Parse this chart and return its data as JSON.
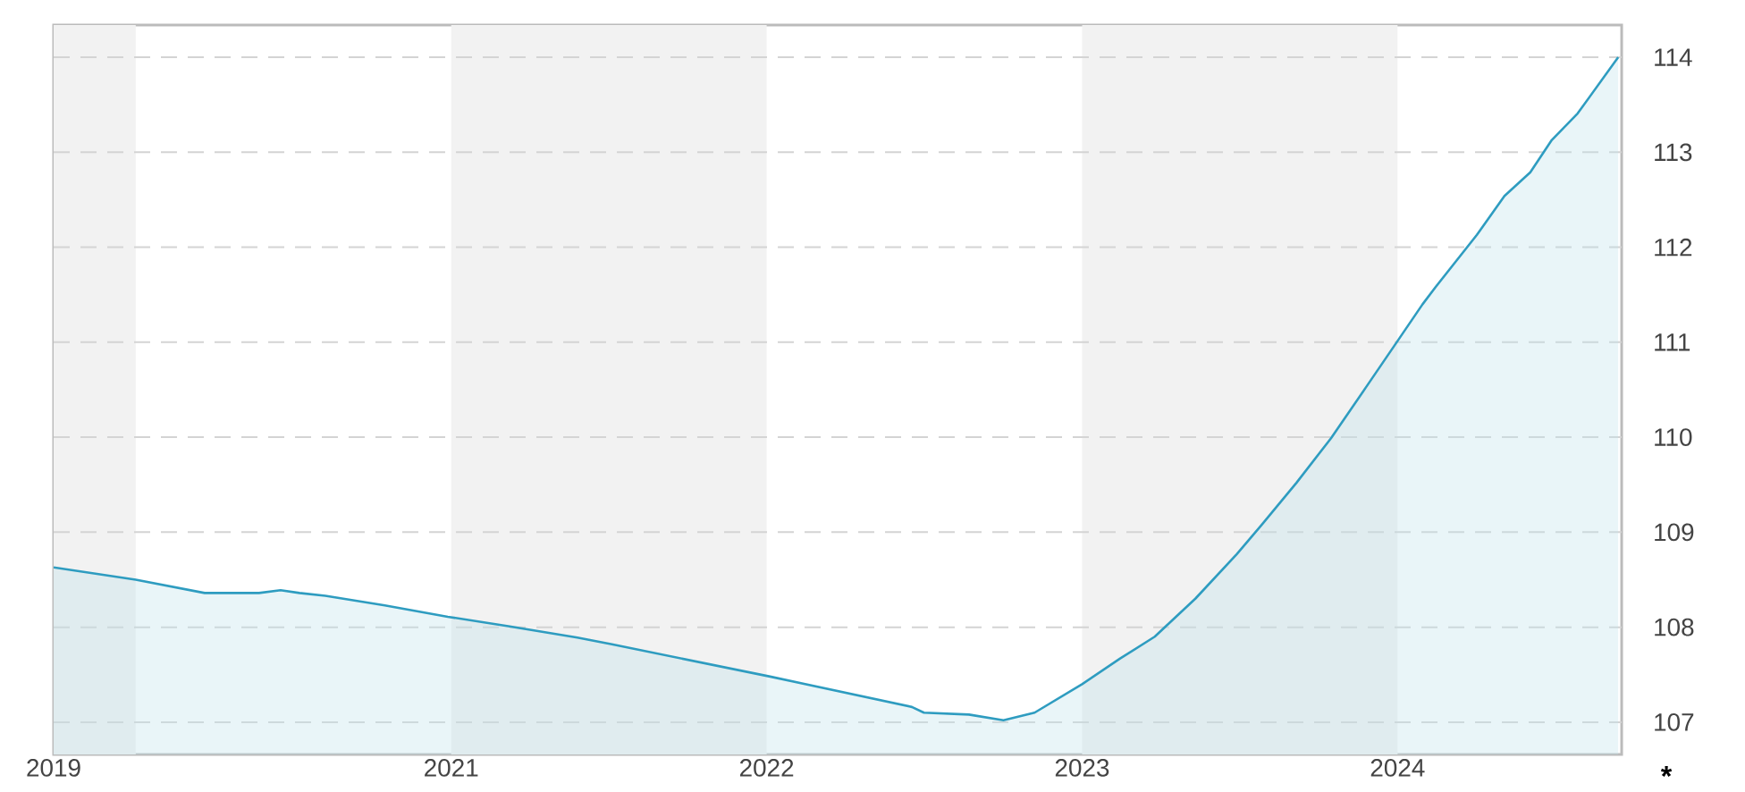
{
  "chart_data": {
    "type": "area",
    "x": [
      "2019-09-28",
      "2020-01-01",
      "2020-03-21",
      "2020-05-23",
      "2020-06-17",
      "2020-07-09",
      "2020-08-08",
      "2020-10-16",
      "2020-12-28",
      "2021-03-08",
      "2021-05-27",
      "2021-07-06",
      "2022-01-05",
      "2022-06-18",
      "2022-07-02",
      "2022-08-23",
      "2022-10-02",
      "2022-11-07",
      "2023-01-01",
      "2023-02-14",
      "2023-03-26",
      "2023-05-12",
      "2023-06-29",
      "2023-07-28",
      "2023-09-06",
      "2023-10-16",
      "2023-11-25",
      "2023-12-28",
      "2024-01-30",
      "2024-02-14",
      "2024-04-02",
      "2024-05-04",
      "2024-06-03",
      "2024-06-28",
      "2024-07-28",
      "2024-09-13"
    ],
    "series": [
      {
        "color": "#2e9cc0",
        "values": [
          108.63,
          108.5,
          108.36,
          108.36,
          108.39,
          108.36,
          108.33,
          108.23,
          108.11,
          108.01,
          107.89,
          107.82,
          107.48,
          107.16,
          107.1,
          107.08,
          107.02,
          107.1,
          107.4,
          107.67,
          107.9,
          108.3,
          108.77,
          109.08,
          109.52,
          109.99,
          110.52,
          110.96,
          111.4,
          111.58,
          112.13,
          112.54,
          112.79,
          113.13,
          113.41,
          114.0
        ]
      }
    ],
    "xlim": [
      "2019-09-28",
      "2024-09-17"
    ],
    "xticks": [
      {
        "value": "2019-09-28",
        "label": "2019"
      },
      "2021",
      "2022",
      "2023",
      "2024"
    ],
    "ylim": [
      106.66,
      114.34
    ],
    "yticks": [
      107,
      108,
      109,
      110,
      111,
      112,
      113,
      114
    ],
    "grid": "y",
    "line_style": "solid",
    "bands": [
      {
        "axis": "x",
        "from": "2019-09-28",
        "to": "2020",
        "color": "#f2f2f2"
      },
      {
        "axis": "x",
        "from": "2021",
        "to": "2022",
        "color": "#f2f2f2"
      },
      {
        "axis": "x",
        "from": "2023",
        "to": "2024",
        "color": "#f2f2f2"
      }
    ],
    "annotations": [
      "*"
    ]
  }
}
